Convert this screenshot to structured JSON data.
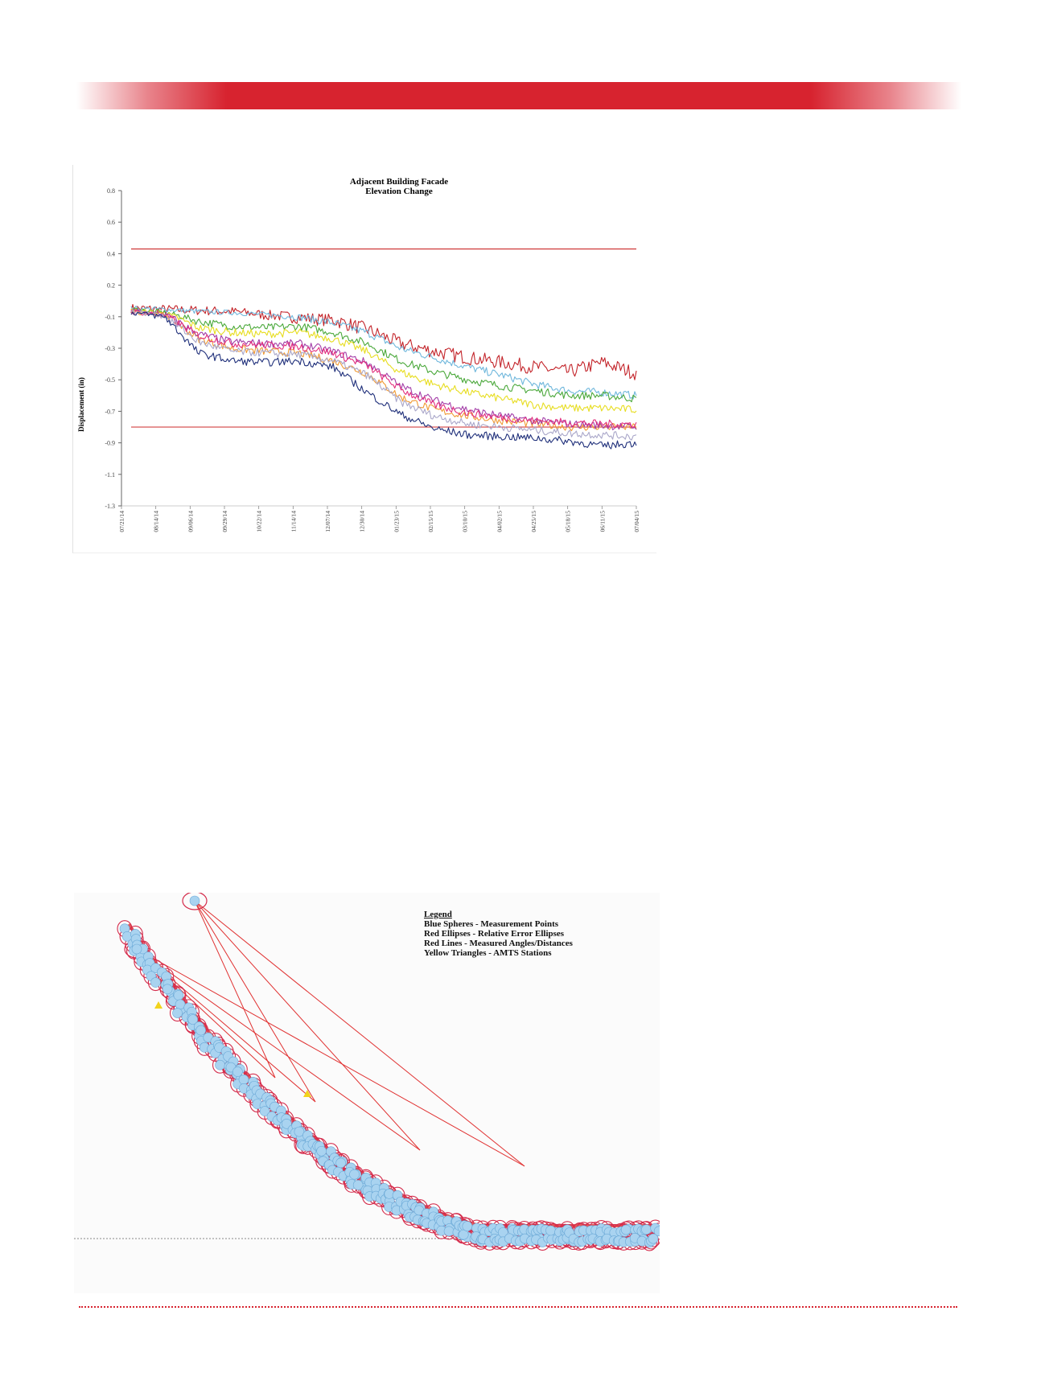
{
  "colors": {
    "accent": "#d7232f",
    "threshold_line": "#cc2a2a",
    "axis": "#555555"
  },
  "chart_data": {
    "type": "line",
    "title": "Adjacent Building Facade",
    "subtitle": "Elevation Change",
    "ylabel": "Displacement (in)",
    "xlabel": "",
    "y_ticks": [
      "0.8",
      "0.6",
      "0.4",
      "0.2",
      "-0.1",
      "-0.3",
      "-0.5",
      "-0.7",
      "-0.9",
      "-1.1",
      "-1.3"
    ],
    "x_ticks": [
      "07/21/14",
      "08/14/14",
      "09/06/14",
      "09/29/14",
      "10/22/14",
      "11/14/14",
      "12/07/14",
      "12/30/14",
      "01/23/15",
      "02/15/15",
      "03/10/15",
      "04/02/15",
      "04/25/15",
      "05/18/15",
      "06/11/15",
      "07/04/15"
    ],
    "thresholds": [
      0.43,
      -0.8
    ],
    "threshold_color": "#cc2a2a",
    "grid": false,
    "series": [
      {
        "color": "#c3242a",
        "values": [
          -0.02,
          -0.03,
          -0.04,
          -0.05,
          -0.08,
          -0.1,
          -0.12,
          -0.18,
          -0.27,
          -0.32,
          -0.36,
          -0.39,
          -0.42,
          -0.45,
          -0.39,
          -0.46
        ]
      },
      {
        "color": "#6fb7dc",
        "values": [
          -0.02,
          -0.03,
          -0.05,
          -0.06,
          -0.08,
          -0.1,
          -0.14,
          -0.2,
          -0.3,
          -0.36,
          -0.42,
          -0.47,
          -0.53,
          -0.57,
          -0.58,
          -0.6
        ]
      },
      {
        "color": "#4aa83a",
        "values": [
          -0.03,
          -0.06,
          -0.13,
          -0.16,
          -0.17,
          -0.16,
          -0.2,
          -0.27,
          -0.38,
          -0.45,
          -0.5,
          -0.54,
          -0.57,
          -0.6,
          -0.6,
          -0.62
        ]
      },
      {
        "color": "#e7dd1f",
        "values": [
          -0.04,
          -0.07,
          -0.17,
          -0.2,
          -0.21,
          -0.2,
          -0.24,
          -0.32,
          -0.45,
          -0.53,
          -0.58,
          -0.62,
          -0.66,
          -0.68,
          -0.68,
          -0.69
        ]
      },
      {
        "color": "#f09a34",
        "values": [
          -0.05,
          -0.08,
          -0.24,
          -0.3,
          -0.32,
          -0.33,
          -0.38,
          -0.46,
          -0.61,
          -0.69,
          -0.73,
          -0.76,
          -0.78,
          -0.8,
          -0.8,
          -0.8
        ]
      },
      {
        "color": "#a33ea8",
        "values": [
          -0.04,
          -0.08,
          -0.21,
          -0.26,
          -0.27,
          -0.27,
          -0.32,
          -0.39,
          -0.54,
          -0.63,
          -0.69,
          -0.73,
          -0.76,
          -0.78,
          -0.79,
          -0.8
        ]
      },
      {
        "color": "#e2307e",
        "values": [
          -0.05,
          -0.09,
          -0.22,
          -0.27,
          -0.28,
          -0.29,
          -0.33,
          -0.41,
          -0.56,
          -0.66,
          -0.71,
          -0.74,
          -0.76,
          -0.77,
          -0.78,
          -0.78
        ]
      },
      {
        "color": "#aaa7c9",
        "values": [
          -0.05,
          -0.09,
          -0.26,
          -0.32,
          -0.33,
          -0.34,
          -0.38,
          -0.47,
          -0.64,
          -0.73,
          -0.78,
          -0.8,
          -0.82,
          -0.84,
          -0.85,
          -0.86
        ]
      },
      {
        "color": "#1f2f7a",
        "values": [
          -0.06,
          -0.1,
          -0.33,
          -0.38,
          -0.39,
          -0.38,
          -0.42,
          -0.58,
          -0.72,
          -0.81,
          -0.85,
          -0.86,
          -0.87,
          -0.89,
          -0.92,
          -0.9
        ]
      }
    ]
  },
  "network": {
    "legend_title": "Legend",
    "legend_items": [
      "Blue Spheres - Measurement Points",
      "Red Ellipses - Relative Error Ellipses",
      "Red Lines - Measured Angles/Distances",
      "Yellow Triangles - AMTS Stations"
    ],
    "sphere_color": "#a9d3f0",
    "ellipse_color": "#d42a4a",
    "line_color": "#e03030",
    "station_color": "#f2d31b"
  }
}
